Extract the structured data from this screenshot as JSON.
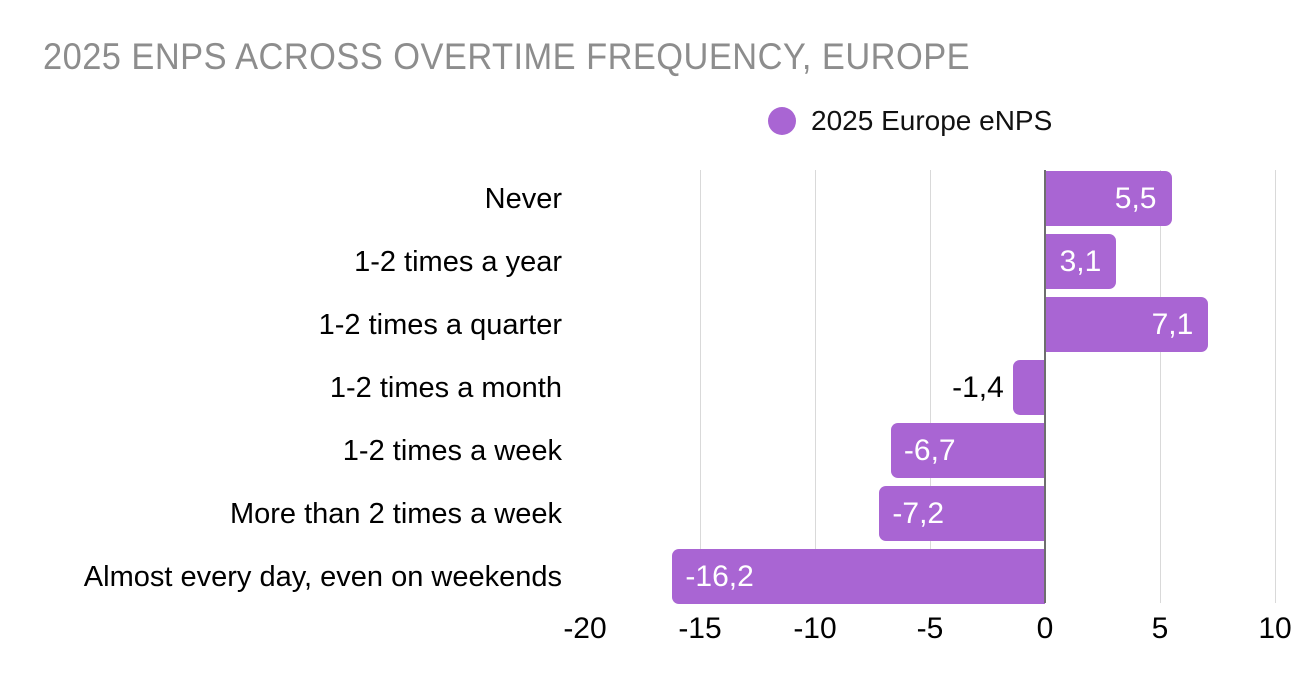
{
  "title": {
    "text": "2025 ENPS ACROSS OVERTIME FREQUENCY, EUROPE",
    "color": "#8d8d8d"
  },
  "legend": {
    "label": "2025 Europe eNPS",
    "marker_color": "#a965d3"
  },
  "chart_data": {
    "type": "bar",
    "orientation": "horizontal",
    "title": "2025 ENPS ACROSS OVERTIME FREQUENCY, EUROPE",
    "legend_position": "top-center",
    "categories": [
      "Never",
      "1-2 times a year",
      "1-2 times a quarter",
      "1-2 times a month",
      "1-2 times a week",
      "More than 2 times a week",
      "Almost every day, even on weekends"
    ],
    "series": [
      {
        "name": "2025 Europe eNPS",
        "color": "#a965d3",
        "values": [
          5.5,
          3.1,
          7.1,
          -1.4,
          -6.7,
          -7.2,
          -16.2
        ],
        "value_labels": [
          "5,5",
          "3,1",
          "7,1",
          "-1,4",
          "-6,7",
          "-7,2",
          "-16,2"
        ]
      }
    ],
    "xlabel": "",
    "ylabel": "",
    "xlim": [
      -20,
      10
    ],
    "x_ticks": [
      -20,
      -15,
      -10,
      -5,
      0,
      5,
      10
    ],
    "x_tick_labels": [
      "-20",
      "-15",
      "-10",
      "-5",
      "0",
      "5",
      "10"
    ],
    "grid": "vertical-gridlines-on",
    "gridline_color": "#d9d9d9",
    "zero_line_color": "#6e6e6e",
    "bar_label_color_inside": "#ffffff",
    "bar_label_color_outside": "#000000",
    "background": "#ffffff"
  }
}
